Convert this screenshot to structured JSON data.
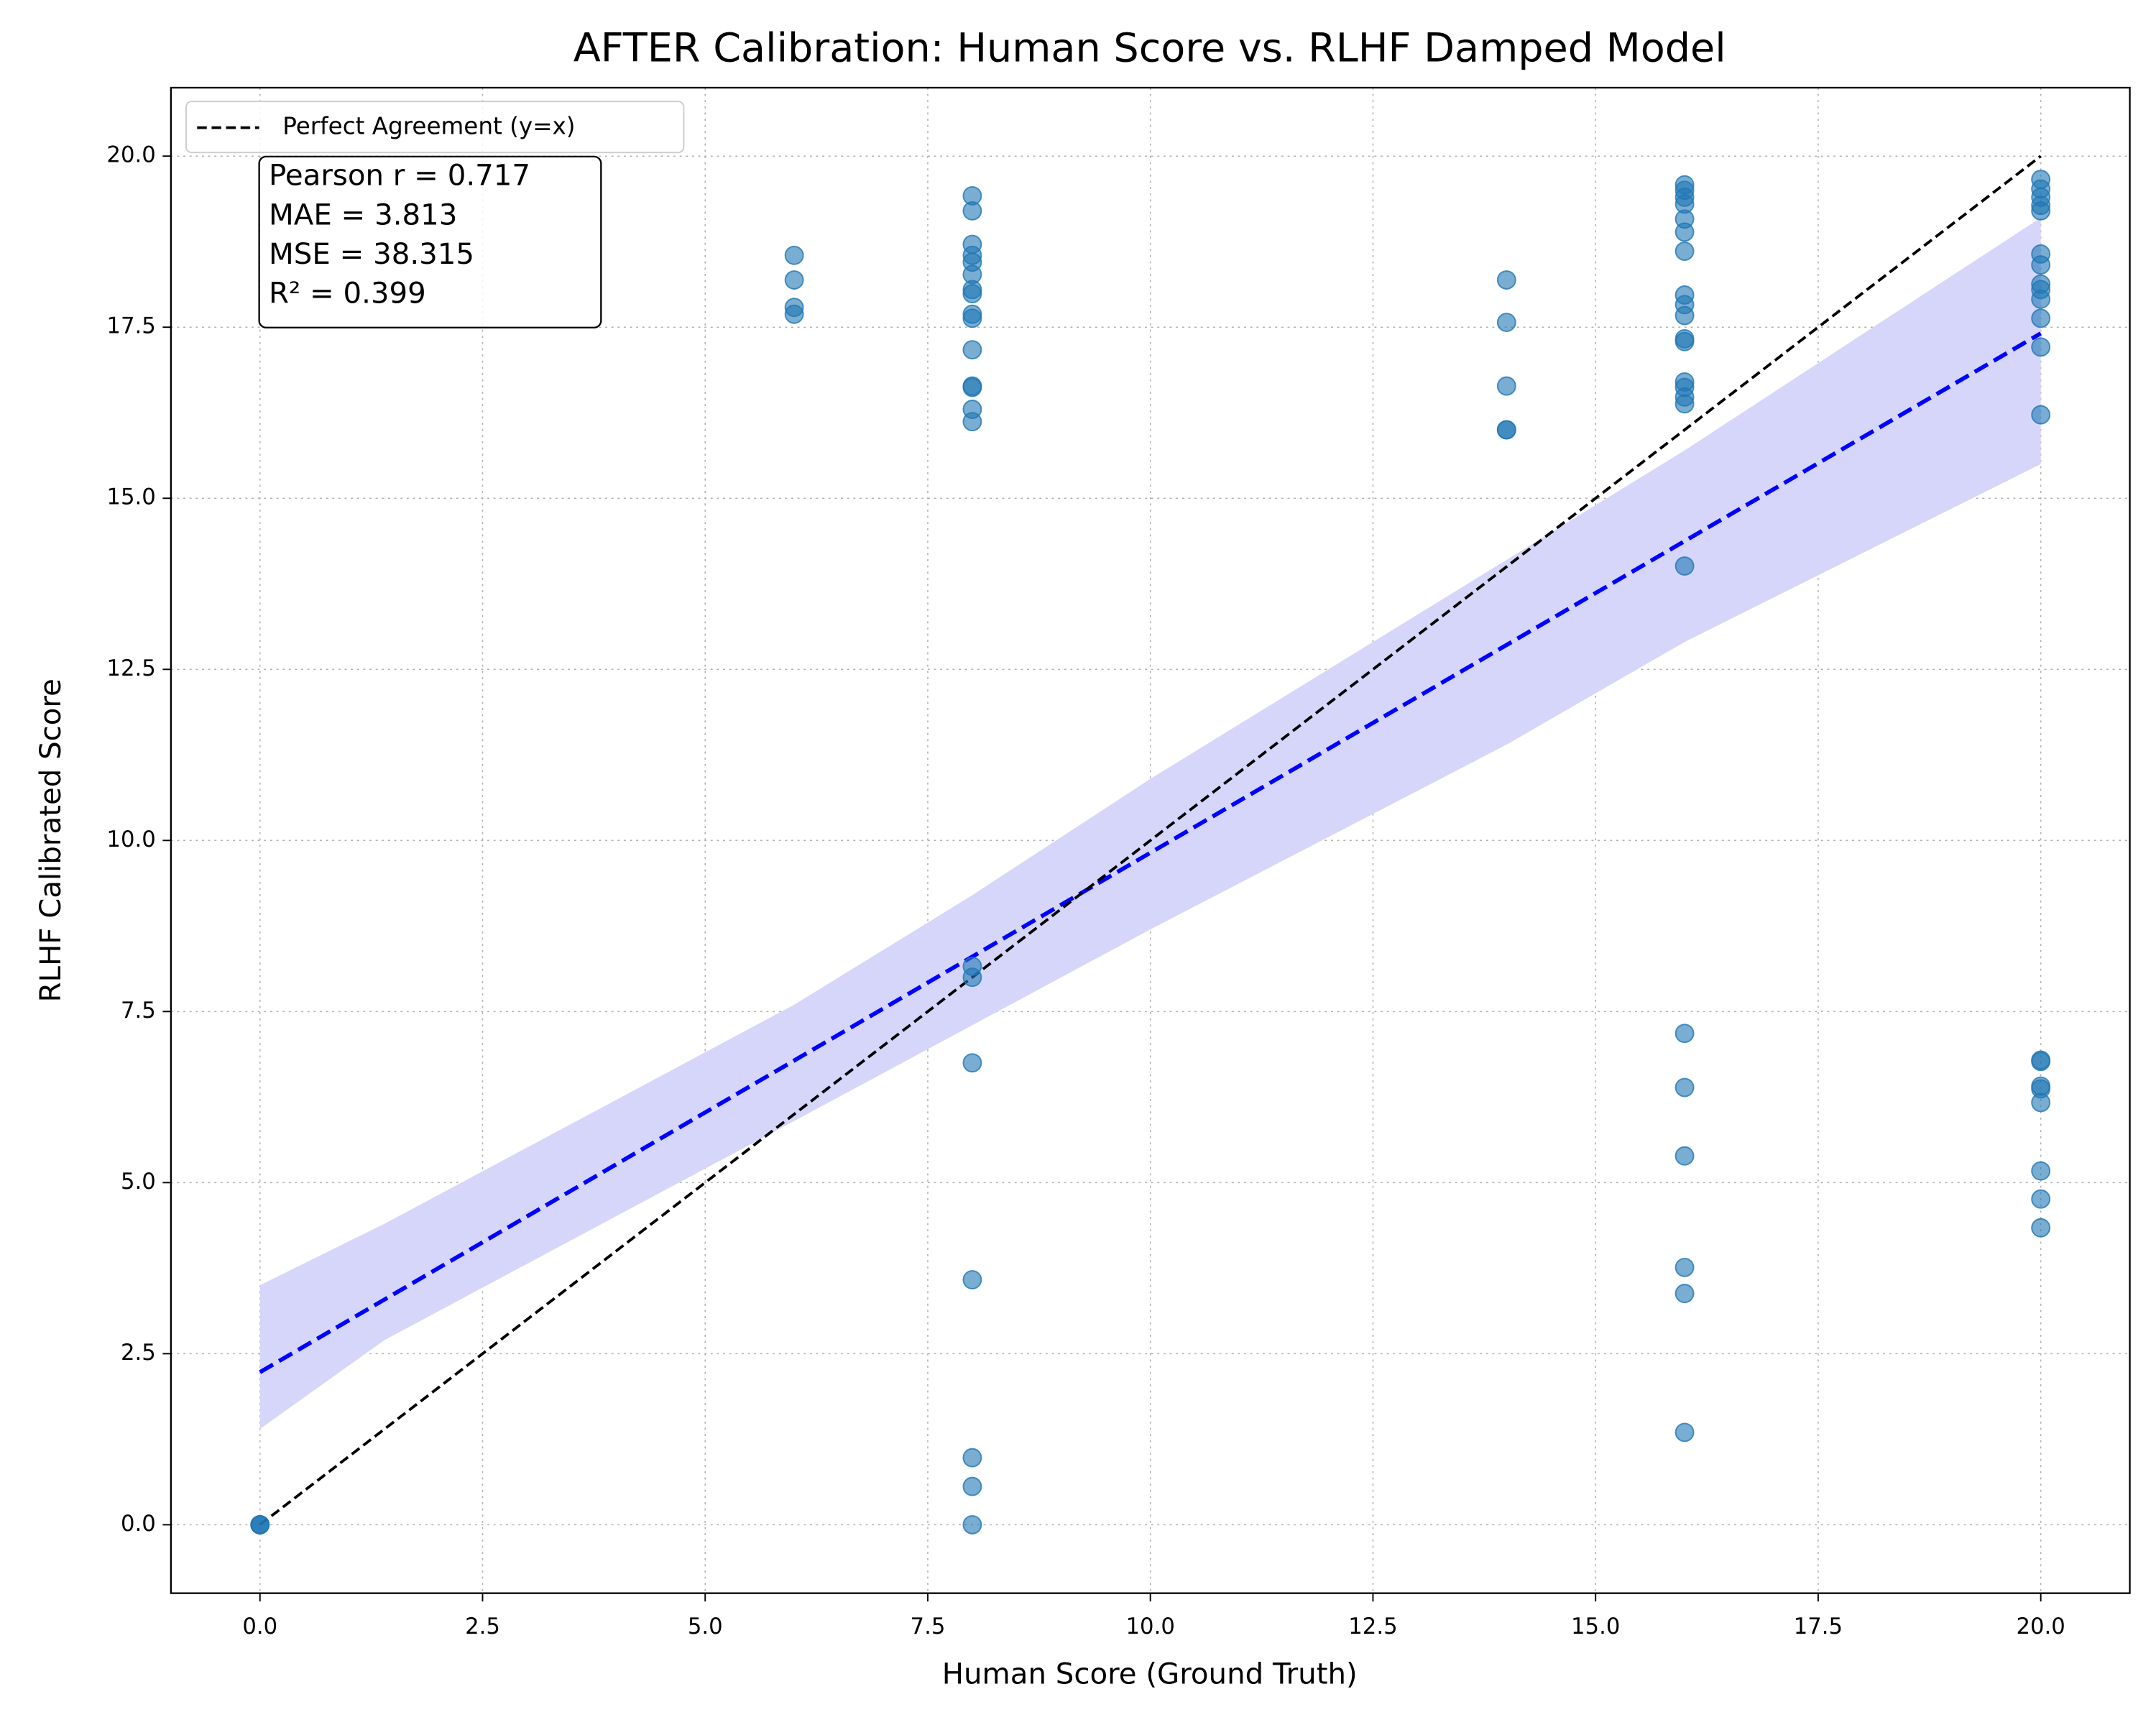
{
  "chart_data": {
    "type": "scatter",
    "title": "AFTER Calibration: Human Score vs. RLHF Damped Model",
    "xlabel": "Human Score (Ground Truth)",
    "ylabel": "RLHF Calibrated Score",
    "xlim": [
      -1,
      21
    ],
    "ylim": [
      -1,
      21
    ],
    "xticks": [
      {
        "value": 0,
        "label": "0.0"
      },
      {
        "value": 2.5,
        "label": "2.5"
      },
      {
        "value": 5,
        "label": "5.0"
      },
      {
        "value": 7.5,
        "label": "7.5"
      },
      {
        "value": 10,
        "label": "10.0"
      },
      {
        "value": 12.5,
        "label": "12.5"
      },
      {
        "value": 15,
        "label": "15.0"
      },
      {
        "value": 17.5,
        "label": "17.5"
      },
      {
        "value": 20,
        "label": "20.0"
      }
    ],
    "yticks": [
      {
        "value": 0,
        "label": "0.0"
      },
      {
        "value": 2.5,
        "label": "2.5"
      },
      {
        "value": 5,
        "label": "5.0"
      },
      {
        "value": 7.5,
        "label": "7.5"
      },
      {
        "value": 10,
        "label": "10.0"
      },
      {
        "value": 12.5,
        "label": "12.5"
      },
      {
        "value": 15,
        "label": "15.0"
      },
      {
        "value": 17.5,
        "label": "17.5"
      },
      {
        "value": 20,
        "label": "20.0"
      }
    ],
    "grid": true,
    "legend": "upper left",
    "series": [
      {
        "color": "#1f77b4",
        "x": [
          0,
          0,
          0,
          6,
          6,
          6,
          6,
          8,
          8,
          8,
          8,
          8,
          8,
          8,
          8,
          8,
          8,
          8,
          8,
          8,
          8,
          8,
          8,
          8,
          8,
          8,
          8,
          8,
          8,
          14,
          14,
          14,
          14,
          14,
          16,
          16,
          16,
          16,
          16,
          16,
          16,
          16,
          16,
          16,
          16,
          16,
          16,
          16,
          16,
          16,
          16,
          16,
          16,
          16,
          16,
          16,
          16,
          20,
          20,
          20,
          20,
          20,
          20,
          20,
          20,
          20,
          20,
          20,
          20,
          20,
          20,
          20,
          20,
          20,
          20,
          20,
          20,
          20
        ],
        "values": [
          0,
          0,
          0,
          18.55,
          18.19,
          17.79,
          17.69,
          19.42,
          19.2,
          18.71,
          18.55,
          18.45,
          18.27,
          18.05,
          17.99,
          17.69,
          17.63,
          17.17,
          16.64,
          16.62,
          16.3,
          16.12,
          8.16,
          8.0,
          6.75,
          3.58,
          0.98,
          0.56,
          0,
          18.19,
          17.57,
          16.64,
          16.0,
          16.0,
          19.58,
          19.5,
          19.4,
          19.3,
          19.08,
          18.89,
          18.61,
          17.97,
          17.83,
          17.67,
          17.33,
          17.29,
          16.7,
          16.62,
          16.48,
          16.38,
          14.01,
          7.18,
          6.39,
          5.39,
          3.76,
          3.38,
          1.35,
          19.66,
          19.52,
          19.4,
          19.28,
          19.2,
          18.57,
          18.41,
          18.13,
          18.05,
          17.91,
          17.63,
          17.21,
          16.22,
          6.79,
          6.77,
          6.41,
          6.37,
          6.17,
          5.17,
          4.76,
          4.34
        ]
      }
    ],
    "reference_line": {
      "name": "Perfect Agreement (y=x)",
      "color": "#000000",
      "x": [
        0,
        20
      ],
      "values": [
        0,
        20
      ]
    },
    "fit": {
      "color": "#0000ff",
      "x": [
        0,
        20
      ],
      "values": [
        2.23,
        17.41
      ]
    },
    "band": {
      "color": "#d6d6fb",
      "x": [
        0,
        1.4,
        6,
        8,
        10,
        14,
        16,
        20
      ],
      "lower": [
        1.4,
        2.7,
        5.9,
        7.3,
        8.7,
        11.4,
        12.9,
        15.5
      ],
      "upper": [
        3.5,
        4.4,
        7.6,
        9.2,
        10.9,
        14.1,
        15.7,
        19.1
      ]
    },
    "annotation": [
      "Pearson r = 0.717",
      "MAE = 3.813",
      "MSE = 38.315",
      "R² = 0.399"
    ]
  }
}
